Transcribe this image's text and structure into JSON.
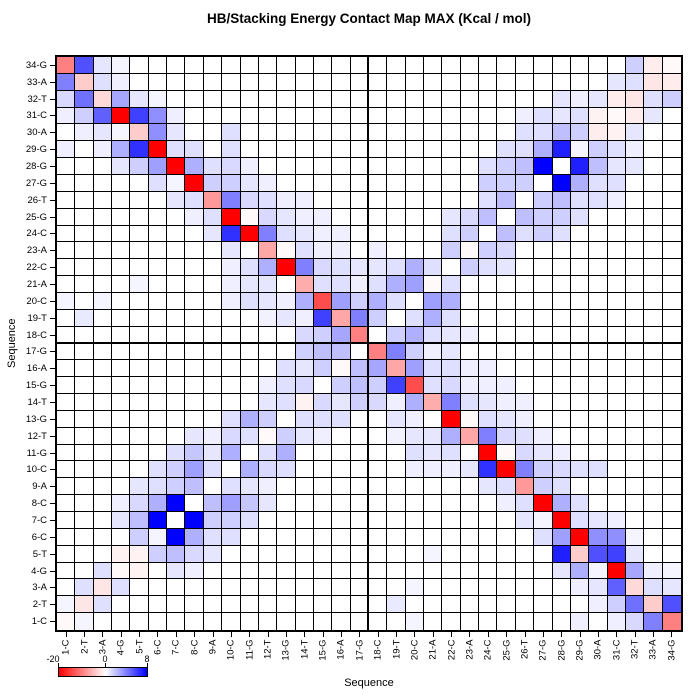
{
  "title": "HB/Stacking Energy Contact Map MAX (Kcal / mol)",
  "x_axis": {
    "label": "Sequence"
  },
  "y_axis": {
    "label": "Sequence"
  },
  "legend": {
    "min_label": "-20",
    "zero_label": "0",
    "max_label": "8",
    "min_color": "#ff0000",
    "zero_color": "#ffffff",
    "max_color": "#0000ff"
  },
  "chart_data": {
    "type": "heatmap",
    "title": "HB/Stacking Energy Contact Map MAX (Kcal / mol)",
    "xlabel": "Sequence",
    "ylabel": "Sequence",
    "categories": [
      "1-C",
      "2-T",
      "3-A",
      "4-G",
      "5-T",
      "6-C",
      "7-C",
      "8-C",
      "9-A",
      "10-C",
      "11-G",
      "12-T",
      "13-G",
      "14-T",
      "15-G",
      "16-A",
      "17-G",
      "18-C",
      "19-T",
      "20-C",
      "21-A",
      "22-C",
      "23-A",
      "24-C",
      "25-G",
      "26-T",
      "27-G",
      "28-G",
      "29-G",
      "30-A",
      "31-C",
      "32-T",
      "33-A",
      "34-G"
    ],
    "value_range": [
      -20,
      8
    ],
    "color_scale": {
      "domain": [
        -20,
        0,
        8
      ],
      "colors": [
        "#ff0000",
        "#ffffff",
        "#0000ff"
      ]
    },
    "quadrant_divider_after_index": 17,
    "grid": true,
    "values_rows_bottom_to_top": [
      [
        -0.5,
        0.3,
        0,
        0,
        0,
        0,
        0,
        0,
        0,
        0,
        0,
        0,
        0,
        0,
        0,
        0,
        0,
        0,
        0,
        0.3,
        0,
        0,
        0,
        0,
        0,
        0,
        0,
        0,
        0.5,
        0,
        0.5,
        1.2,
        4,
        -10
      ],
      [
        0.3,
        -2,
        1,
        0,
        0,
        0,
        0,
        0,
        0,
        0,
        0,
        0,
        0,
        0,
        0,
        0,
        0,
        0,
        0.7,
        0,
        0,
        0,
        0,
        0,
        0,
        0,
        0,
        0,
        0,
        0.5,
        1.5,
        4.5,
        -4,
        5.5
      ],
      [
        0,
        1,
        -2,
        1,
        0,
        0,
        0,
        0,
        0,
        0,
        0,
        0,
        0,
        0,
        0,
        0,
        0,
        0,
        0,
        0.3,
        0,
        0,
        0,
        0,
        0,
        0,
        0,
        0,
        0.5,
        0.8,
        5,
        -3,
        1,
        0.8
      ],
      [
        0,
        0,
        1,
        -0.5,
        -1,
        0,
        0.8,
        0.5,
        0,
        0,
        0,
        0,
        0,
        0,
        0,
        0,
        0,
        0,
        0,
        0,
        0,
        0,
        0,
        0,
        0,
        0,
        0,
        0.8,
        2.5,
        0.3,
        -20,
        2.8,
        0.5,
        0.3
      ],
      [
        0,
        0,
        0,
        -1,
        -1,
        1.5,
        2,
        1.2,
        0.8,
        0,
        0,
        0,
        0,
        0,
        0,
        0,
        0,
        0,
        0,
        0,
        0.3,
        0,
        0,
        0,
        0,
        0,
        0,
        7,
        -4,
        5.5,
        6,
        0.8,
        0,
        0
      ],
      [
        0,
        0,
        0,
        0,
        1.5,
        0.3,
        8,
        2.5,
        1,
        1,
        0,
        0,
        0,
        0,
        0,
        0,
        0,
        0,
        0,
        0,
        0,
        0,
        0,
        0,
        0,
        0,
        1,
        3,
        -20,
        3.5,
        3.5,
        0.3,
        0,
        0
      ],
      [
        0,
        0,
        0,
        0.8,
        2,
        8,
        0,
        8,
        1.5,
        1.5,
        1,
        0,
        0,
        0,
        0,
        0,
        0,
        0,
        0,
        0,
        0,
        0,
        0,
        0,
        0,
        0.8,
        0.3,
        -20,
        1,
        0.8,
        0.5,
        0,
        0,
        0
      ],
      [
        0,
        0,
        0,
        0.5,
        1.2,
        2.5,
        8,
        0,
        2,
        3,
        1.8,
        0.8,
        0,
        0,
        0,
        0,
        0,
        0,
        0,
        0,
        0,
        0,
        0,
        0,
        0.5,
        1,
        -20,
        2.5,
        1,
        0,
        0,
        0,
        0,
        0
      ],
      [
        0,
        0,
        0,
        0,
        0.8,
        1,
        1.5,
        2,
        0,
        1,
        0.8,
        0.5,
        0,
        0,
        0,
        0,
        0,
        0,
        0,
        0,
        0,
        0,
        0,
        0.8,
        1,
        -8,
        1.5,
        1,
        0,
        0,
        0,
        0,
        0,
        0
      ],
      [
        0,
        0,
        0,
        0,
        0,
        1,
        1.5,
        3,
        1,
        0,
        2.5,
        1.2,
        1,
        0,
        0,
        0,
        0,
        0,
        0,
        0.5,
        0.5,
        0.5,
        0.8,
        6.5,
        -20,
        4,
        1.5,
        1.2,
        1,
        1,
        0,
        0,
        0,
        0
      ],
      [
        0,
        0,
        0,
        0,
        0,
        0,
        1,
        1.8,
        0.8,
        2.5,
        0,
        1,
        2.5,
        0,
        0,
        0,
        0,
        0,
        0,
        1,
        0.8,
        1,
        0,
        -20,
        -0.5,
        1.2,
        0.8,
        0.5,
        0,
        0,
        0,
        0,
        0,
        0
      ],
      [
        0,
        0,
        0,
        0,
        0,
        0,
        0,
        0.8,
        0.5,
        1.2,
        1,
        -0.5,
        1.5,
        0.8,
        0.5,
        0,
        0,
        0,
        0.4,
        0.8,
        0.8,
        2.5,
        -7,
        4,
        1.2,
        1,
        0.5,
        0,
        0,
        0,
        0,
        0,
        0,
        0
      ],
      [
        0,
        0,
        0,
        0,
        0,
        0,
        0,
        0,
        0,
        1,
        2.5,
        1.5,
        0,
        1,
        1,
        1,
        0,
        0,
        0.8,
        0.5,
        0,
        -20,
        -0.5,
        1,
        0.8,
        0.5,
        0,
        0,
        0,
        0,
        0,
        0,
        0,
        0
      ],
      [
        0,
        0,
        0,
        0,
        0,
        0,
        0,
        0,
        0,
        0,
        0,
        0.8,
        1,
        -1,
        1.2,
        0.8,
        1.5,
        1.2,
        0.5,
        2.5,
        -6.5,
        4,
        1,
        0.8,
        0.5,
        0.5,
        0,
        0,
        0,
        0,
        0,
        0,
        0,
        0
      ],
      [
        0,
        0,
        0,
        0,
        0,
        0,
        0,
        0,
        0,
        0,
        0,
        0.5,
        1,
        1.2,
        0,
        1.5,
        2,
        1.5,
        6,
        -14,
        1,
        1.2,
        0.5,
        0.5,
        0.5,
        0,
        0,
        0,
        0,
        0,
        0,
        0,
        0,
        0
      ],
      [
        0,
        0,
        0,
        0,
        0,
        0,
        0,
        0,
        0,
        0,
        0,
        0,
        1,
        0.8,
        1.5,
        -0.5,
        2,
        2.8,
        -7,
        3,
        1,
        1,
        0.5,
        0.5,
        0,
        0,
        0,
        0,
        0,
        0,
        0,
        0,
        0,
        0
      ],
      [
        0,
        0,
        0,
        0,
        0,
        0,
        0,
        0,
        0,
        0,
        0,
        0,
        0,
        1.5,
        2,
        2,
        0,
        -10,
        4,
        1.5,
        0.5,
        0.8,
        0,
        0,
        0,
        0,
        0,
        0,
        0,
        0,
        0,
        0,
        0,
        0
      ],
      [
        0,
        0,
        0,
        0,
        0,
        0,
        0,
        0,
        0,
        0,
        0,
        0,
        0,
        1.2,
        1.5,
        2.8,
        -10,
        0,
        1.5,
        2.5,
        1,
        0.8,
        0.5,
        0,
        0,
        0,
        0,
        0,
        0,
        0,
        0,
        0,
        0,
        0
      ],
      [
        0,
        0.7,
        0,
        0,
        0,
        0,
        0,
        0,
        0,
        0,
        0,
        0.4,
        0.8,
        0.5,
        6,
        -7,
        4,
        1.5,
        0,
        1,
        2.5,
        1,
        0,
        0,
        0,
        0,
        0,
        0,
        0,
        0,
        0,
        0,
        0,
        0
      ],
      [
        0.3,
        0,
        0.3,
        0,
        0,
        0,
        0,
        0,
        0,
        0.5,
        1,
        0.8,
        0.5,
        2.5,
        -14,
        3,
        1.5,
        2.5,
        1,
        0,
        3,
        2.5,
        0,
        0,
        0,
        0,
        0,
        0,
        0,
        0,
        0,
        0,
        0,
        0
      ],
      [
        0,
        0,
        0,
        0,
        0.3,
        0,
        0,
        0,
        0,
        0.5,
        0.8,
        0.8,
        0,
        -6.5,
        1,
        1,
        0.5,
        1,
        2.5,
        3,
        -0.5,
        1,
        0,
        0,
        0,
        0,
        0,
        0,
        0,
        0,
        0,
        0,
        0,
        0
      ],
      [
        0,
        0,
        0,
        0,
        0,
        0,
        0,
        0,
        0,
        0.5,
        1,
        2.5,
        -20,
        4,
        1.2,
        1,
        0.8,
        0.8,
        1,
        2.5,
        1,
        0,
        1.5,
        1,
        0.8,
        0,
        0,
        0,
        0,
        0,
        0,
        0,
        0,
        0
      ],
      [
        0,
        0,
        0,
        0,
        0,
        0,
        0,
        0,
        0,
        0.8,
        0,
        -7,
        -0.5,
        1,
        0.5,
        0.5,
        0,
        0.5,
        0,
        0,
        0,
        1.5,
        -0.5,
        1.5,
        1.2,
        0,
        0,
        0,
        0,
        0,
        0,
        0,
        0,
        0
      ],
      [
        0,
        0,
        0,
        0,
        0,
        0,
        0,
        0,
        0.8,
        6.5,
        -20,
        4,
        1,
        0.8,
        0.5,
        0.5,
        0,
        0,
        0,
        0,
        0,
        1,
        1.5,
        0,
        2,
        1,
        1.5,
        1,
        0,
        0,
        0,
        0,
        0,
        0
      ],
      [
        0,
        0,
        0,
        0,
        0,
        0,
        0,
        0.5,
        1,
        -20,
        -0.5,
        1.2,
        0.8,
        0.5,
        0.5,
        0,
        0,
        0,
        0,
        0,
        0,
        0.8,
        1.2,
        2,
        0,
        2,
        1.5,
        1.5,
        1,
        0,
        0,
        0,
        0,
        0
      ],
      [
        0,
        0,
        0,
        0,
        0,
        0,
        0.8,
        1,
        -8,
        4,
        1.2,
        1,
        0.5,
        0.5,
        0,
        0,
        0,
        0,
        0,
        0,
        0,
        0,
        0,
        1,
        2,
        0,
        1.5,
        2,
        1,
        1,
        0.5,
        0,
        0,
        0
      ],
      [
        0,
        0,
        0,
        0,
        0,
        1,
        0.3,
        -20,
        1.5,
        1.5,
        0.8,
        0.5,
        0,
        0,
        0,
        0,
        0,
        0,
        0,
        0,
        0,
        0,
        0,
        1.5,
        1.5,
        1.5,
        0,
        8,
        2.5,
        1,
        1,
        0,
        0,
        0
      ],
      [
        0,
        0,
        0,
        0.8,
        1.5,
        3,
        -20,
        2.5,
        1,
        1.2,
        0.5,
        0,
        0,
        0,
        0,
        0,
        0,
        0,
        0,
        0,
        0,
        0,
        0,
        1,
        1.5,
        2,
        8,
        0,
        7,
        2,
        0.8,
        0.8,
        0,
        0
      ],
      [
        0.5,
        0,
        0.5,
        2.5,
        6.5,
        -20,
        1,
        1,
        0,
        1,
        0,
        0,
        0,
        0,
        0,
        0,
        0,
        0,
        0,
        0,
        0,
        0,
        0,
        0,
        1,
        1,
        2.5,
        7,
        0.3,
        1.5,
        1,
        0.5,
        0,
        0
      ],
      [
        0,
        0.5,
        0.8,
        0.3,
        -4,
        3.5,
        0.8,
        0,
        0,
        1,
        0,
        0,
        0,
        0,
        0,
        0,
        0,
        0,
        0,
        0,
        0,
        0,
        0,
        0,
        0,
        1,
        1,
        2,
        1.5,
        -1.5,
        -1,
        0.8,
        0,
        0
      ],
      [
        0.5,
        1.5,
        5,
        -20,
        6,
        3.5,
        0.5,
        0,
        0,
        0,
        0,
        0,
        0,
        0,
        0,
        0,
        0,
        0,
        0,
        0,
        0,
        0,
        0,
        0,
        0,
        0.5,
        1,
        0.8,
        1,
        -1,
        -0.5,
        -1.5,
        0.8,
        0
      ],
      [
        1.2,
        4.5,
        -3,
        2.8,
        0.8,
        0.3,
        0,
        0,
        0,
        0,
        0,
        0,
        0,
        0,
        0,
        0,
        0,
        0,
        0,
        0,
        0,
        0,
        0,
        0,
        0,
        0,
        0,
        0.8,
        0.5,
        0.8,
        -1.5,
        -2,
        1,
        1.5
      ],
      [
        4,
        -4,
        1,
        0.5,
        0,
        0,
        0,
        0,
        0,
        0,
        0,
        0,
        0,
        0,
        0,
        0,
        0,
        0,
        0,
        0,
        0,
        0,
        0,
        0,
        0,
        0,
        0,
        0,
        0,
        0,
        0.8,
        1,
        -2,
        -1.5
      ],
      [
        -10,
        5.5,
        0.8,
        0.3,
        0,
        0,
        0,
        0,
        0,
        0,
        0,
        0,
        0,
        0,
        0,
        0,
        0,
        0,
        0,
        0,
        0,
        0,
        0,
        0,
        0,
        0,
        0,
        0,
        0,
        0,
        0,
        1.5,
        -1.5,
        -0.5
      ]
    ]
  }
}
